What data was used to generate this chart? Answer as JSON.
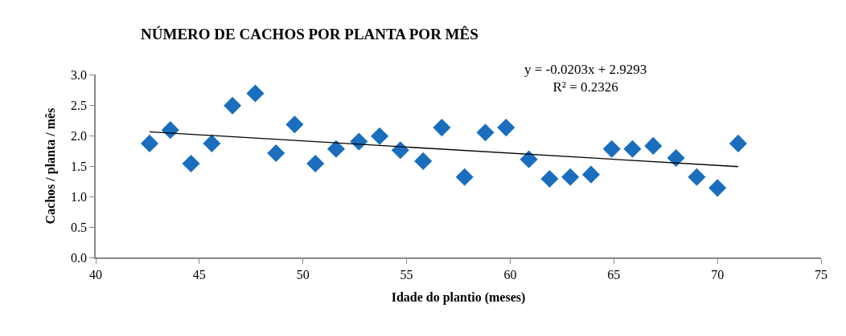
{
  "chart_data": {
    "type": "scatter",
    "title": "NÚMERO DE CACHOS POR PLANTA POR MÊS",
    "xlabel": "Idade do plantio (meses)",
    "ylabel": "Cachos / planta / mês",
    "series": [
      {
        "color": "#1a6ebd",
        "marker": "diamond",
        "x": [
          42.6,
          43.6,
          44.6,
          45.6,
          46.6,
          47.7,
          48.7,
          49.6,
          50.6,
          51.6,
          52.7,
          53.7,
          54.7,
          55.8,
          56.7,
          57.8,
          58.8,
          59.8,
          60.9,
          61.9,
          62.9,
          63.9,
          64.9,
          65.9,
          66.9,
          68.0,
          69.0,
          70.0,
          71.0
        ],
        "values": [
          1.87,
          2.09,
          1.54,
          1.87,
          2.49,
          2.69,
          1.71,
          2.18,
          1.54,
          1.78,
          1.9,
          1.99,
          1.76,
          1.58,
          2.13,
          1.32,
          2.05,
          2.13,
          1.61,
          1.29,
          1.32,
          1.36,
          1.78,
          1.78,
          1.83,
          1.63,
          1.32,
          1.14,
          1.87
        ]
      },
      {
        "type": "line",
        "color": "#000000",
        "x": [
          42.6,
          71.0
        ],
        "values": [
          2.06,
          1.49
        ]
      }
    ],
    "annotations": [
      "y = -0.0203x + 2.9293\nR² = 0.2326"
    ],
    "xlim": [
      40,
      75
    ],
    "xticks": [
      40,
      45,
      50,
      55,
      60,
      65,
      70,
      75
    ],
    "ylim": [
      0,
      3
    ],
    "yticks": [
      {
        "value": 0,
        "label": "0.0"
      },
      {
        "value": 0.5,
        "label": "0.5"
      },
      {
        "value": 1,
        "label": "1.0"
      },
      {
        "value": 1.5,
        "label": "1.5"
      },
      {
        "value": 2,
        "label": "2.0"
      },
      {
        "value": 2.5,
        "label": "2.5"
      },
      {
        "value": 3,
        "label": "3.0"
      }
    ]
  }
}
